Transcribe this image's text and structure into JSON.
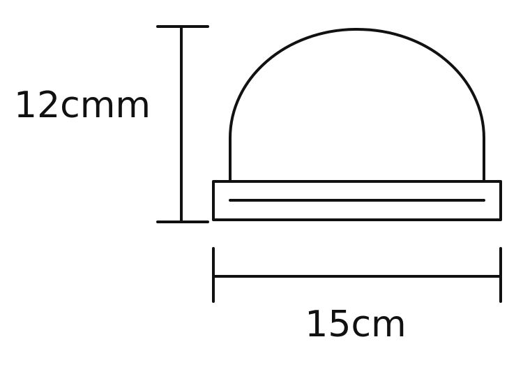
{
  "diagram": {
    "height_label": "12cmm",
    "width_label": "15cm"
  },
  "colors": {
    "line": "#111111",
    "background": "#ffffff"
  }
}
